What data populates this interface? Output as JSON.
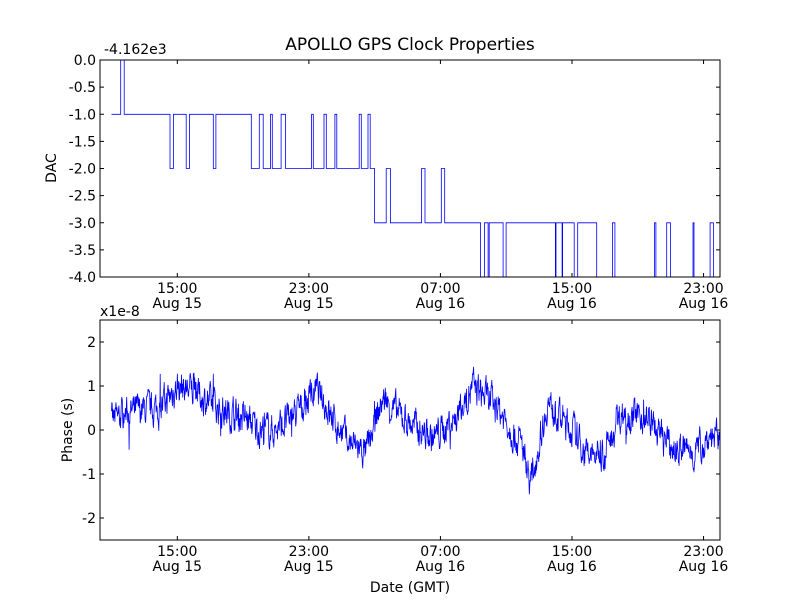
{
  "figure": {
    "title": "APOLLO GPS Clock Properties"
  },
  "chart_data": [
    {
      "type": "line",
      "id": "dac",
      "title": "",
      "ylabel": "DAC",
      "xlabel": "",
      "offset_text": "-4.162e3",
      "ylim": [
        -4.0,
        0.0
      ],
      "yticks": [
        "0.0",
        "-0.5",
        "-1.0",
        "-1.5",
        "-2.0",
        "-2.5",
        "-3.0",
        "-3.5",
        "-4.0"
      ],
      "ytick_values": [
        0.0,
        -0.5,
        -1.0,
        -1.5,
        -2.0,
        -2.5,
        -3.0,
        -3.5,
        -4.0
      ],
      "xlim_hours": [
        10.3,
        24.0
      ],
      "xticks": [
        {
          "time": "15:00",
          "date": "Aug 15"
        },
        {
          "time": "23:00",
          "date": "Aug 15"
        },
        {
          "time": "07:00",
          "date": "Aug 16"
        },
        {
          "time": "15:00",
          "date": "Aug 16"
        },
        {
          "time": "23:00",
          "date": "Aug 16"
        }
      ],
      "grid": false,
      "series": [
        {
          "color": "#0000ff",
          "levels": [
            {
              "from": "Aug 15 11:00",
              "to": "Aug 15 12:00",
              "base": -1.0,
              "alt": 0.0
            },
            {
              "from": "Aug 15 12:00",
              "to": "Aug 15 19:30",
              "base": -1.0,
              "alt": -2.0
            },
            {
              "from": "Aug 15 19:30",
              "to": "Aug 16 03:00",
              "base": -2.0,
              "alt": -1.0
            },
            {
              "from": "Aug 16 03:00",
              "to": "Aug 16 08:00",
              "base": -3.0,
              "alt": -2.0
            },
            {
              "from": "Aug 16 08:00",
              "to": "Aug 16 16:30",
              "base": -3.0,
              "alt": -4.0
            },
            {
              "from": "Aug 16 16:30",
              "to": "Aug 17 00:00",
              "base": -4.0,
              "alt": -3.0
            }
          ]
        }
      ]
    },
    {
      "type": "line",
      "id": "phase",
      "title": "",
      "ylabel": "Phase (s)",
      "xlabel": "Date (GMT)",
      "offset_text": "x1e-8",
      "ylim": [
        -2.5,
        2.5
      ],
      "yticks": [
        "2",
        "1",
        "0",
        "-1",
        "-2"
      ],
      "ytick_values": [
        2,
        1,
        0,
        -1,
        -2
      ],
      "xticks": [
        {
          "time": "15:00",
          "date": "Aug 15"
        },
        {
          "time": "23:00",
          "date": "Aug 15"
        },
        {
          "time": "07:00",
          "date": "Aug 16"
        },
        {
          "time": "15:00",
          "date": "Aug 16"
        },
        {
          "time": "23:00",
          "date": "Aug 16"
        }
      ],
      "grid": false,
      "series": [
        {
          "color": "#0000ff",
          "trend_points": [
            [
              "Aug 15 11:00",
              0.2
            ],
            [
              "Aug 15 12:00",
              0.4
            ],
            [
              "Aug 15 14:00",
              0.5
            ],
            [
              "Aug 15 15:00",
              1.0
            ],
            [
              "Aug 15 16:00",
              0.9
            ],
            [
              "Aug 15 17:00",
              0.6
            ],
            [
              "Aug 15 18:00",
              0.4
            ],
            [
              "Aug 15 19:00",
              0.3
            ],
            [
              "Aug 15 20:00",
              0.0
            ],
            [
              "Aug 15 21:00",
              0.0
            ],
            [
              "Aug 15 22:00",
              0.3
            ],
            [
              "Aug 15 23:30",
              0.9
            ],
            [
              "Aug 16 00:30",
              0.2
            ],
            [
              "Aug 16 01:30",
              -0.3
            ],
            [
              "Aug 16 02:30",
              -0.5
            ],
            [
              "Aug 16 03:30",
              0.7
            ],
            [
              "Aug 16 05:00",
              0.2
            ],
            [
              "Aug 16 06:30",
              -0.2
            ],
            [
              "Aug 16 08:00",
              0.3
            ],
            [
              "Aug 16 09:00",
              1.0
            ],
            [
              "Aug 16 10:30",
              0.5
            ],
            [
              "Aug 16 12:00",
              -0.4
            ],
            [
              "Aug 16 12:30",
              -1.2
            ],
            [
              "Aug 16 13:30",
              0.6
            ],
            [
              "Aug 16 15:00",
              0.0
            ],
            [
              "Aug 16 16:00",
              -0.6
            ],
            [
              "Aug 16 17:00",
              -0.5
            ],
            [
              "Aug 16 18:00",
              0.4
            ],
            [
              "Aug 16 19:30",
              0.3
            ],
            [
              "Aug 16 21:00",
              -0.4
            ],
            [
              "Aug 16 22:30",
              -0.5
            ],
            [
              "Aug 16 23:30",
              -0.1
            ],
            [
              "Aug 17 00:00",
              -0.3
            ]
          ],
          "noise_amplitude": 0.3
        }
      ]
    }
  ]
}
